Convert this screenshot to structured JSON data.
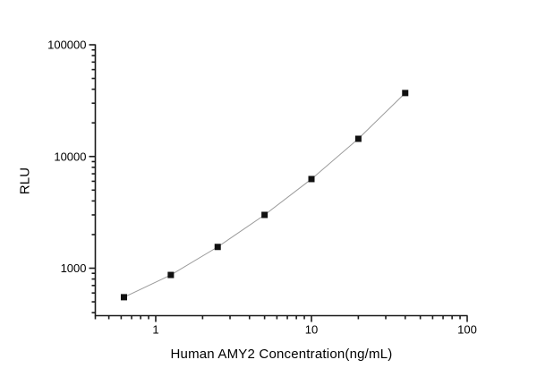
{
  "figure": {
    "background": "#ffffff",
    "axis_color": "#1a1a1a",
    "text_color": "#000000",
    "line_color": "#9a9a9a",
    "marker_color": "#111111"
  },
  "chart_data": {
    "type": "scatter",
    "title": "",
    "xlabel": "Human AMY2 Concentration(ng/mL)",
    "ylabel": "RLU",
    "x_scale": "log",
    "y_scale": "log",
    "xlim": [
      0.4,
      100
    ],
    "ylim": [
      380,
      100000
    ],
    "grid": false,
    "legend": null,
    "x_major_ticks": [
      1,
      10,
      100
    ],
    "x_tick_labels": [
      "1",
      "10",
      "100"
    ],
    "y_major_ticks": [
      1000,
      10000,
      100000
    ],
    "y_tick_labels": [
      "1000",
      "10000",
      "100000"
    ],
    "series": [
      {
        "name": "standard-curve",
        "marker": "square",
        "x": [
          0.625,
          1.25,
          2.5,
          5,
          10,
          20,
          40
        ],
        "y": [
          550,
          870,
          1550,
          3000,
          6280,
          14400,
          37000
        ]
      }
    ]
  }
}
